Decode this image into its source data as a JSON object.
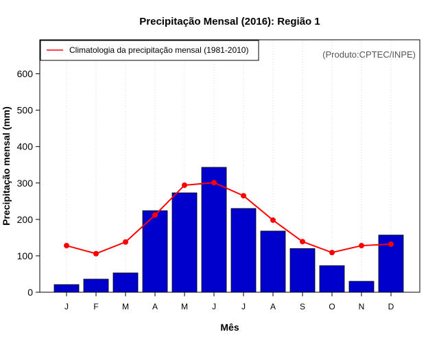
{
  "chart_data": {
    "type": "bar",
    "title": "Precipitação Mensal (2016): Região 1",
    "xlabel": "Mês",
    "ylabel": "Precipitação mensal (mm)",
    "ylim": [
      0,
      680
    ],
    "yticks": [
      0,
      100,
      200,
      300,
      400,
      500,
      600
    ],
    "categories": [
      "J",
      "F",
      "M",
      "A",
      "M",
      "J",
      "J",
      "A",
      "S",
      "O",
      "N",
      "D"
    ],
    "series": [
      {
        "name": "Precipitação mensal 2016",
        "kind": "bar",
        "color": "#0000cc",
        "values": [
          21,
          36,
          53,
          224,
          273,
          343,
          230,
          168,
          120,
          73,
          30,
          157
        ]
      },
      {
        "name": "Climatologia da precipitação mensal (1981-2010)",
        "kind": "line",
        "color": "#ff0000",
        "values": [
          128,
          106,
          138,
          212,
          294,
          301,
          265,
          198,
          139,
          109,
          128,
          132
        ]
      }
    ],
    "legend": {
      "position": "top-left",
      "entries": [
        "Climatologia da precipitação mensal (1981-2010)"
      ]
    },
    "credit": "(Produto:CPTEC/INPE)",
    "grid": "vertical dotted"
  }
}
